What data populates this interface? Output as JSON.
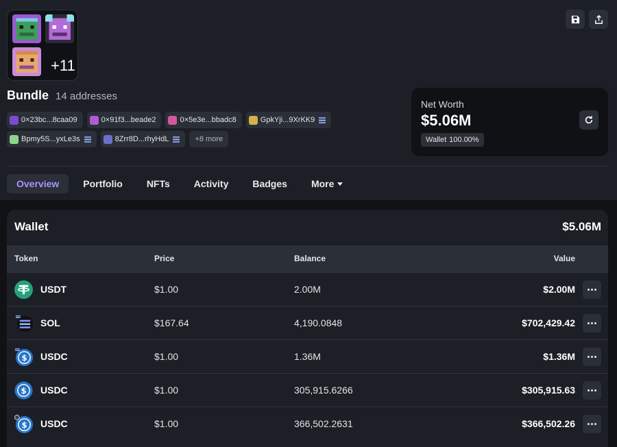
{
  "colors": {
    "accent": "#a993ff",
    "background": "#1c1f25",
    "panel": "#0f1115",
    "usdt": "#26a17b",
    "usdc": "#2775ca"
  },
  "bundle": {
    "extra_count": "+11",
    "title": "Bundle",
    "subtitle": "14 addresses"
  },
  "addresses": [
    {
      "label": "0×23bc...8caa09",
      "color": "#7b4ccf",
      "solana": false
    },
    {
      "label": "0×91f3...beade2",
      "color": "#b05bd6",
      "solana": false
    },
    {
      "label": "0×5e3e...bbadc8",
      "color": "#d6559b",
      "solana": false
    },
    {
      "label": "GpkYji...9XrKK9",
      "color": "#d6b04a",
      "solana": true
    },
    {
      "label": "Bpmy5S...yxLe3s",
      "color": "#8fd48a",
      "solana": true
    },
    {
      "label": "8Zrr8D...rhyHdL",
      "color": "#6a70c9",
      "solana": true
    }
  ],
  "more_addresses": "+8 more",
  "net_worth": {
    "label": "Net Worth",
    "value": "$5.06M",
    "badge_label": "Wallet",
    "badge_pct": "100.00%"
  },
  "tabs": [
    {
      "label": "Overview",
      "active": true
    },
    {
      "label": "Portfolio",
      "active": false
    },
    {
      "label": "NFTs",
      "active": false
    },
    {
      "label": "Activity",
      "active": false
    },
    {
      "label": "Badges",
      "active": false
    },
    {
      "label": "More",
      "active": false
    }
  ],
  "wallet": {
    "title": "Wallet",
    "total": "$5.06M",
    "columns": {
      "token": "Token",
      "price": "Price",
      "balance": "Balance",
      "value": "Value"
    },
    "rows": [
      {
        "token": "USDT",
        "icon": "usdt-icon",
        "price": "$1.00",
        "balance": "2.00M",
        "value": "$2.00M"
      },
      {
        "token": "SOL",
        "icon": "sol-icon",
        "price": "$167.64",
        "balance": "4,190.0848",
        "value": "$702,429.42"
      },
      {
        "token": "USDC",
        "icon": "usdc-icon",
        "price": "$1.00",
        "balance": "1.36M",
        "value": "$1.36M"
      },
      {
        "token": "USDC",
        "icon": "usdc-icon",
        "price": "$1.00",
        "balance": "305,915.6266",
        "value": "$305,915.63"
      },
      {
        "token": "USDC",
        "icon": "usdc-icon",
        "price": "$1.00",
        "balance": "366,502.2631",
        "value": "$366,502.26"
      }
    ]
  }
}
